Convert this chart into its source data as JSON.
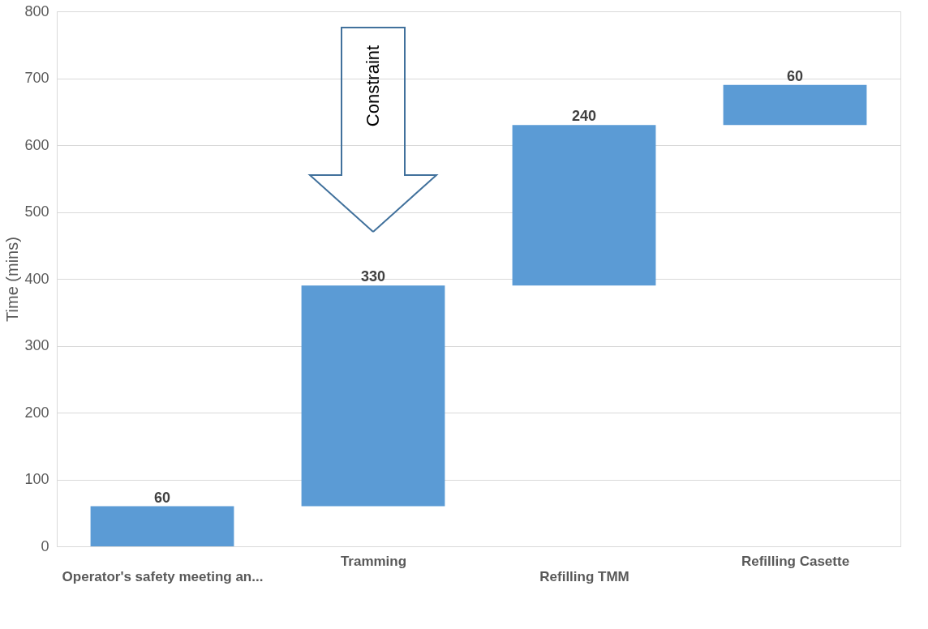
{
  "chart_data": {
    "type": "bar",
    "ylabel": "Time (mins)",
    "categories": [
      "Operator's safety meeting an...",
      "Tramming",
      "Refilling TMM",
      "Refilling Casette"
    ],
    "values": [
      60,
      330,
      240,
      60
    ],
    "base": [
      0,
      60,
      390,
      630
    ],
    "color": "#5b9bd5",
    "ylim": [
      0,
      800
    ],
    "yticks": [
      0,
      100,
      200,
      300,
      400,
      500,
      600,
      700,
      800
    ],
    "grid": "y",
    "data_labels": true,
    "annotations": [
      "Constraint"
    ]
  }
}
